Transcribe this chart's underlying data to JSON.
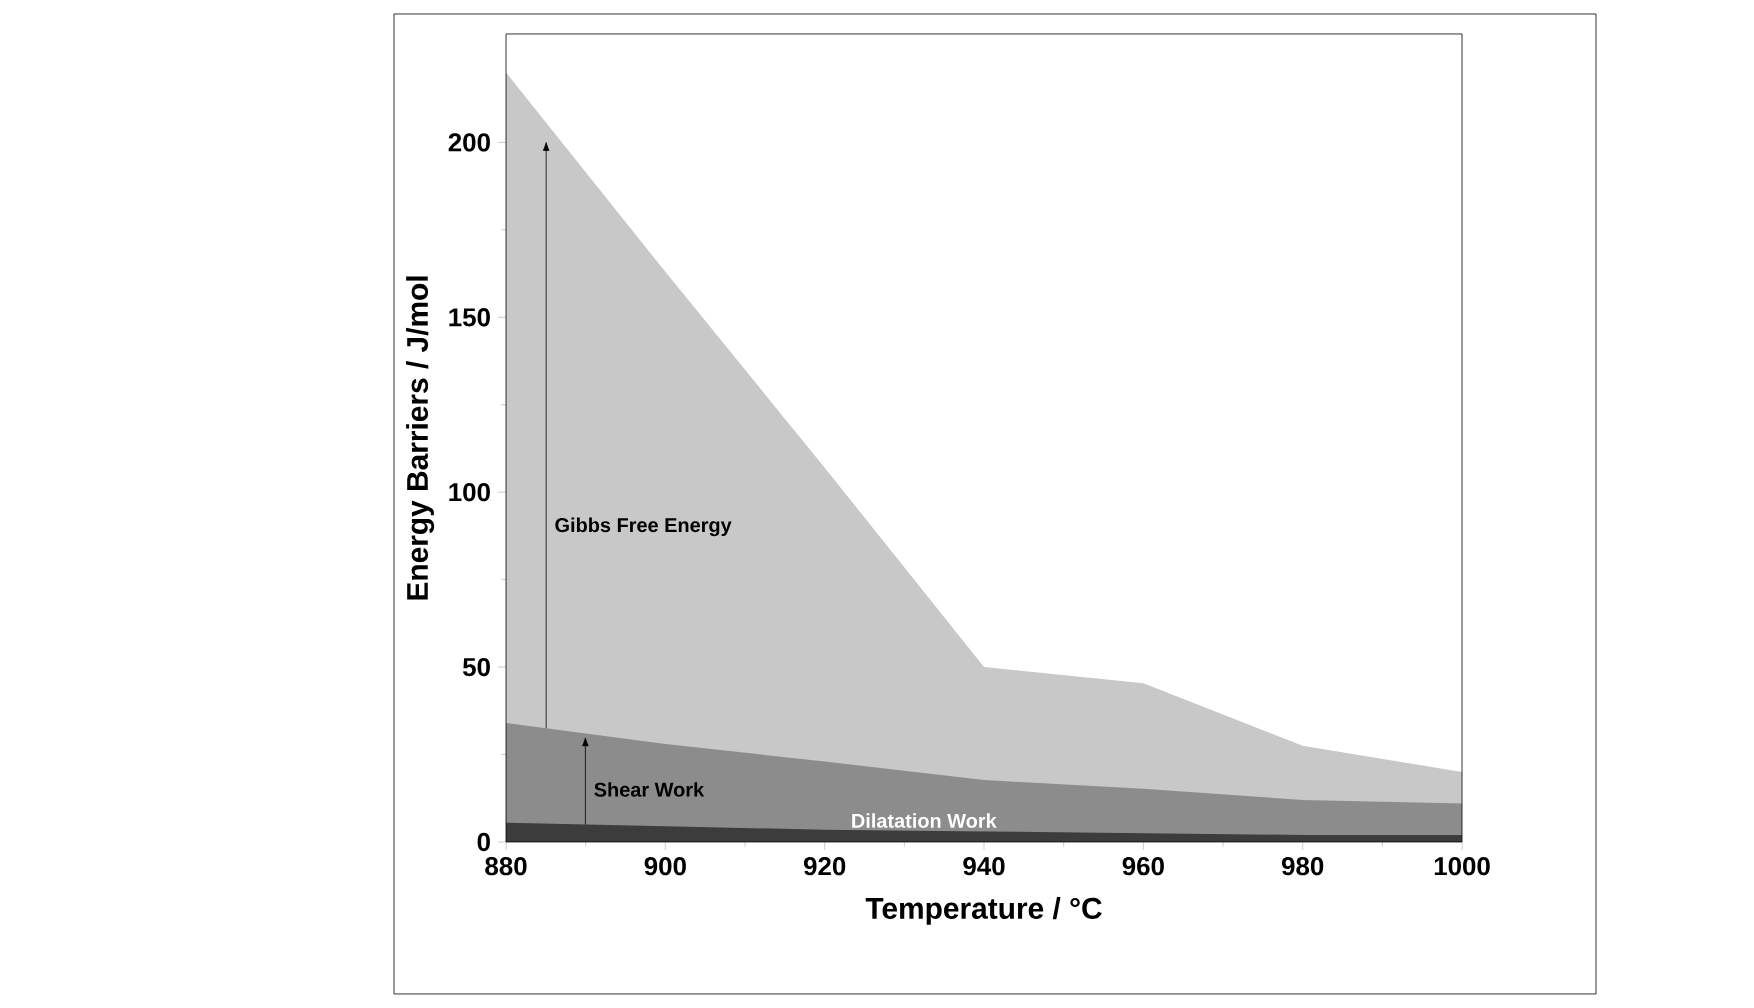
{
  "chart_data": {
    "type": "area",
    "xlabel": "Temperature / °C",
    "ylabel": "Energy Barriers / J/mol",
    "x": [
      880,
      900,
      920,
      940,
      960,
      980,
      1000
    ],
    "series": [
      {
        "color": "#c8c8c8",
        "values": [
          220,
          163,
          107,
          50,
          45.4,
          27.5,
          20
        ]
      },
      {
        "color": "#8c8c8c",
        "values": [
          34,
          28,
          23,
          17.7,
          15.2,
          12,
          11
        ]
      },
      {
        "color": "#3c3c3c",
        "values": [
          5.5,
          4.5,
          3.5,
          3,
          2.5,
          2,
          2
        ]
      }
    ],
    "annotations": [
      "Gibbs Free Energy",
      "Shear Work",
      "Dilatation Work"
    ],
    "xlim": [
      880,
      1000
    ],
    "ylim": [
      0,
      231
    ],
    "xticks": [
      880,
      900,
      920,
      940,
      960,
      980,
      1000
    ],
    "yticks": [
      0,
      50,
      100,
      150,
      200
    ],
    "grid": false
  }
}
